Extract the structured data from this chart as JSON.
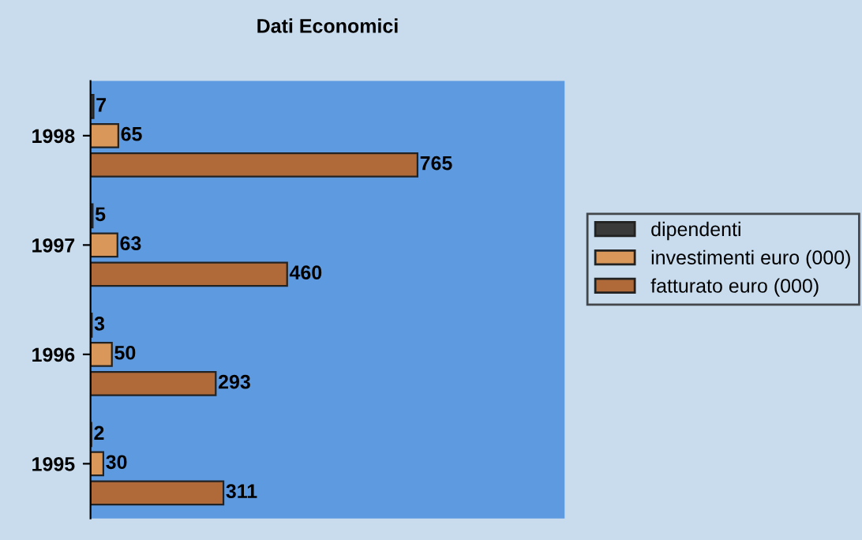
{
  "chart_data": {
    "type": "bar",
    "title": "Dati Economici",
    "orientation": "horizontal",
    "categories": [
      "1998",
      "1997",
      "1996",
      "1995"
    ],
    "series": [
      {
        "name": "dipendenti",
        "color": "#3a3a3a",
        "values": [
          7,
          5,
          3,
          2
        ]
      },
      {
        "name": "investimenti euro (000)",
        "color": "#d9985a",
        "values": [
          65,
          63,
          50,
          30
        ]
      },
      {
        "name": "fatturato euro (000)",
        "color": "#b06a3a",
        "values": [
          765,
          460,
          293,
          311
        ]
      }
    ],
    "data_labels": true,
    "legend": "right",
    "grid": false
  }
}
